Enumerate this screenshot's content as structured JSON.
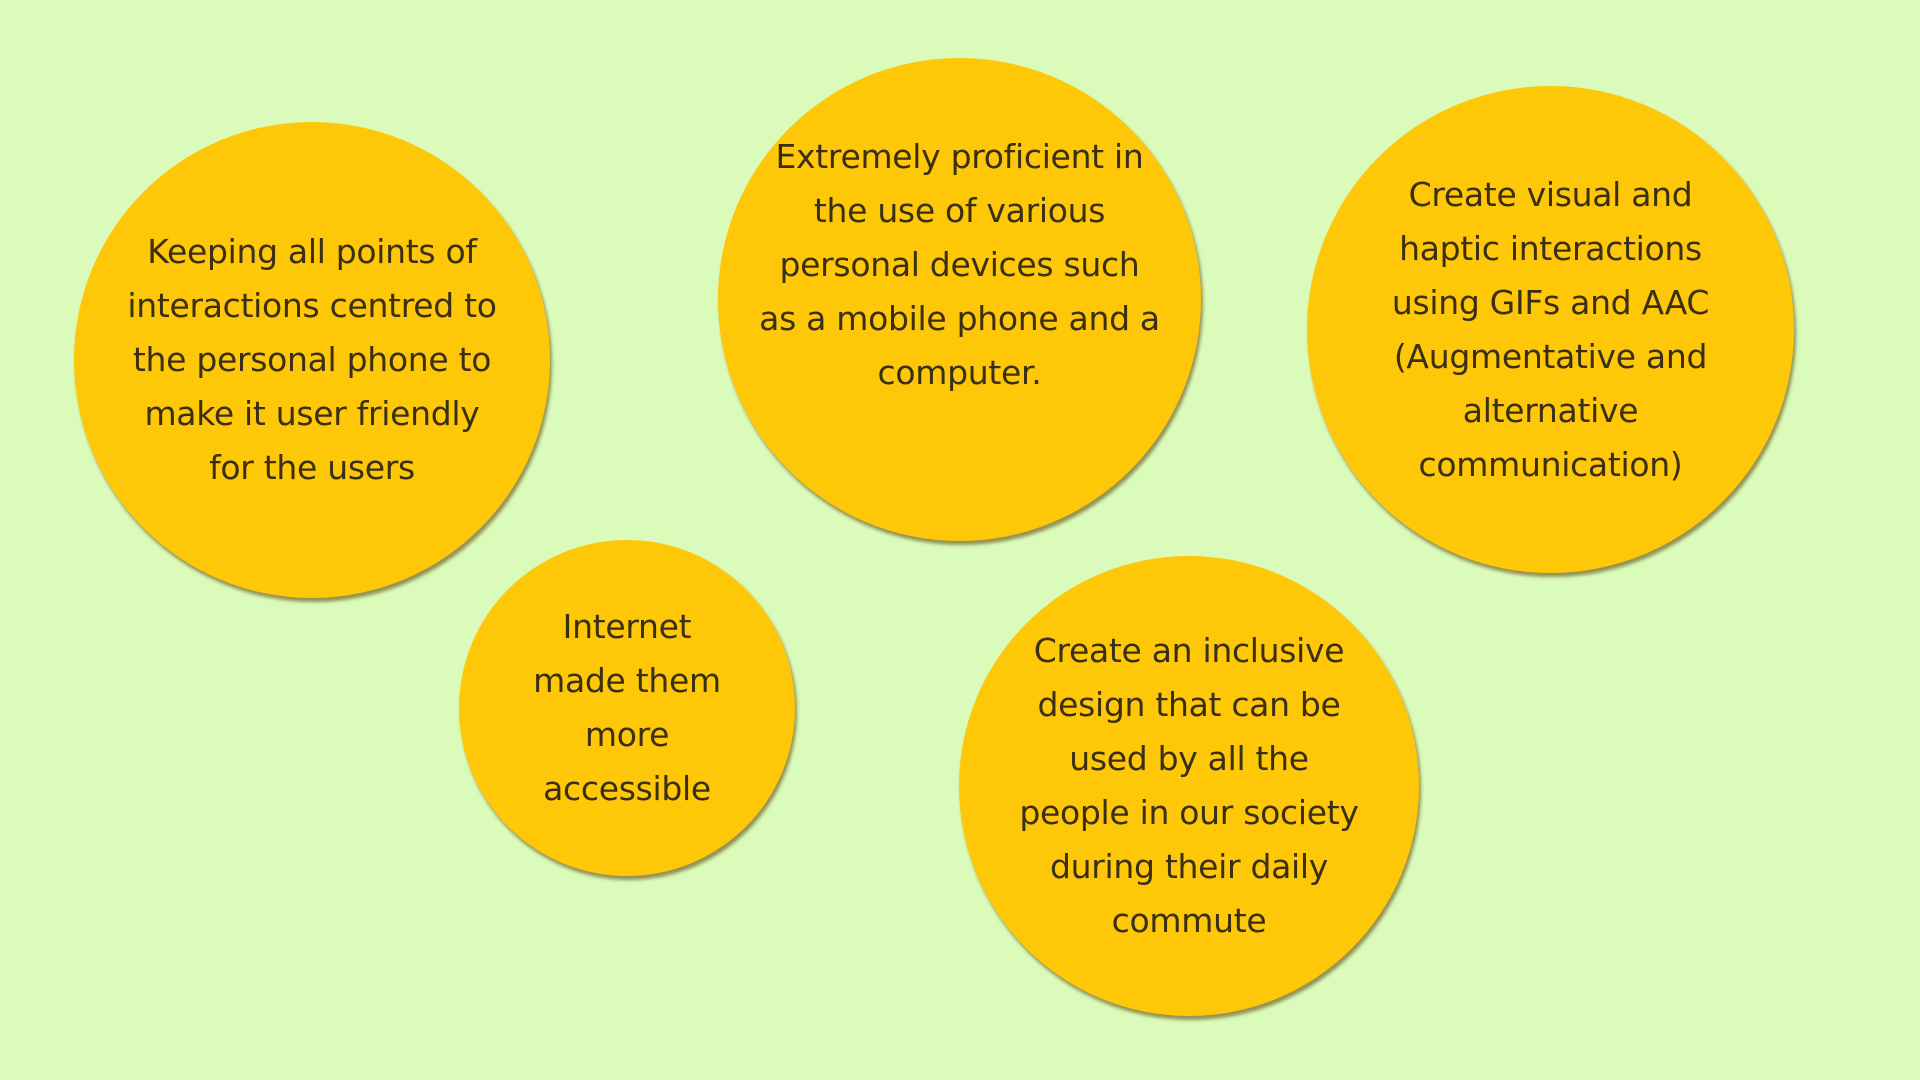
{
  "colors": {
    "background": "#dafbb9",
    "bubble_fill": "#fec808",
    "text": "#3a2f12"
  },
  "bubbles": [
    {
      "lines": [
        "Keeping all points of",
        "interactions centred to",
        "the personal phone to",
        "make it user friendly",
        "for the users"
      ]
    },
    {
      "lines": [
        "Extremely proficient in",
        "the use of various",
        "personal devices such",
        "as a mobile phone and a",
        "computer."
      ]
    },
    {
      "lines": [
        "Create visual and",
        "haptic interactions",
        "using GIFs and AAC",
        "(Augmentative and",
        "alternative",
        "communication)"
      ]
    },
    {
      "lines": [
        "Internet",
        "made them",
        "more",
        "accessible"
      ]
    },
    {
      "lines": [
        "Create an inclusive",
        "design that can be",
        "used by all the",
        "people in our society",
        "during their daily",
        "commute"
      ]
    }
  ]
}
